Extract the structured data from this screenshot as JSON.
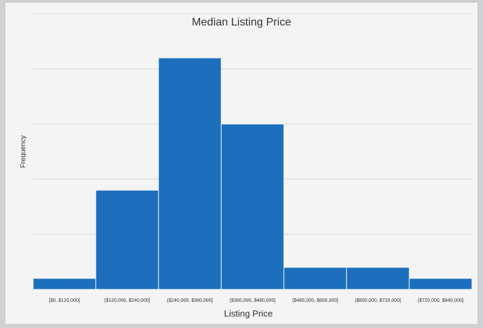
{
  "chart_data": {
    "type": "bar",
    "title": "Median Listing Price",
    "x_label": "Listing Price",
    "y_label": "Frequency",
    "categories": [
      "[$0, $120,000]",
      "($120,000, $240,000]",
      "($240,000, $360,000]",
      "($360,000, $480,000]",
      "($480,000, $600,000]",
      "($600,000, $720,000]",
      "($720,000, $840,000]"
    ],
    "values": [
      1,
      9,
      21,
      15,
      2,
      2,
      1
    ],
    "color": "#1d6fbe",
    "ylim": [
      0,
      25
    ],
    "yticks": [
      0,
      5,
      10,
      15,
      20,
      25
    ],
    "grid": true,
    "show_ytick_labels": false
  }
}
